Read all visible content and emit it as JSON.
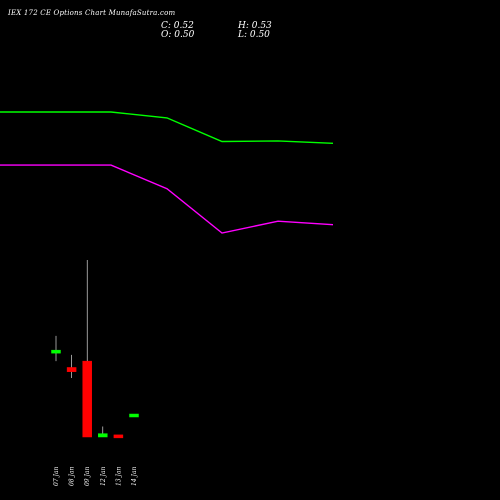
{
  "header": {
    "title": "IEX 172 CE Options Chart MunafaSutra.com",
    "close": "C: 0.52",
    "high": "H: 0.53",
    "open": "O: 0.50",
    "low": "L: 0.50"
  },
  "colors": {
    "background": "#000000",
    "up": "#00ff00",
    "down": "#ff0000",
    "wick": "#ffffff",
    "ma_fast": "#00ff00",
    "ma_slow": "#ff00ff",
    "text": "#ffffff"
  },
  "chart_data": {
    "type": "candlestick",
    "categories": [
      "07 Jan",
      "08 Jan",
      "09 Jan",
      "12 Jan",
      "13 Jan",
      "14 Jan"
    ],
    "candles": [
      {
        "date": "07 Jan",
        "open": 2.0,
        "high": 2.4,
        "low": 1.8,
        "close": 2.05,
        "color": "up"
      },
      {
        "date": "08 Jan",
        "open": 1.65,
        "high": 1.95,
        "low": 1.4,
        "close": 1.55,
        "color": "down"
      },
      {
        "date": "09 Jan",
        "open": 1.8,
        "high": 4.2,
        "low": 0.0,
        "close": 0.0,
        "color": "down"
      },
      {
        "date": "12 Jan",
        "open": 0.0,
        "high": 0.25,
        "low": 0.0,
        "close": 0.08,
        "color": "up"
      },
      {
        "date": "13 Jan",
        "open": 0.03,
        "high": 0.03,
        "low": 0.0,
        "close": 0.0,
        "color": "down"
      },
      {
        "date": "14 Jan",
        "open": 0.5,
        "high": 0.53,
        "low": 0.5,
        "close": 0.52,
        "color": "up"
      }
    ],
    "ma_lines": [
      {
        "color": "ma_fast",
        "values": [
          null,
          4.9,
          4.8,
          4.4,
          4.41,
          4.37
        ]
      },
      {
        "color": "ma_slow",
        "values": [
          null,
          4.0,
          3.6,
          2.85,
          3.05,
          2.99
        ]
      }
    ]
  }
}
